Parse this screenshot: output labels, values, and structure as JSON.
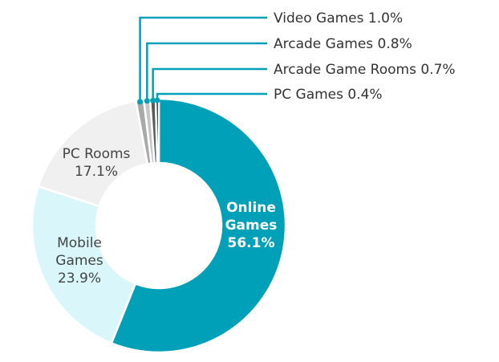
{
  "chart_data": {
    "type": "pie",
    "donut": true,
    "legend": "callout-lines-top-right",
    "slices": [
      {
        "label": "Online Games",
        "value": 56.1,
        "value_text": "56.1%",
        "color": "#00a0b8",
        "label_lines": [
          "Online",
          "Games",
          "56.1%"
        ],
        "label_style": "inside-bold-white"
      },
      {
        "label": "Mobile Games",
        "value": 23.9,
        "value_text": "23.9%",
        "color": "#d9f7fb",
        "label_lines": [
          "Mobile",
          "Games",
          "23.9%"
        ],
        "label_style": "inside"
      },
      {
        "label": "PC Rooms",
        "value": 17.1,
        "value_text": "17.1%",
        "color": "#f0f0f0",
        "label_lines": [
          "PC Rooms",
          "17.1%"
        ],
        "label_style": "inside"
      },
      {
        "label": "Video Games",
        "value": 1.0,
        "value_text": "1.0%",
        "color": "#a9a9a9",
        "callout": "Video Games 1.0%"
      },
      {
        "label": "Arcade Games",
        "value": 0.8,
        "value_text": "0.8%",
        "color": "#c6c6c6",
        "callout": "Arcade Games 0.8%"
      },
      {
        "label": "Arcade Game Rooms",
        "value": 0.7,
        "value_text": "0.7%",
        "color": "#5a5a5a",
        "callout": "Arcade Game Rooms 0.7%"
      },
      {
        "label": "PC Games",
        "value": 0.4,
        "value_text": "0.4%",
        "color": "#111111",
        "callout": "PC Games 0.4%"
      }
    ],
    "callout_line_color": "#00a0b8"
  }
}
